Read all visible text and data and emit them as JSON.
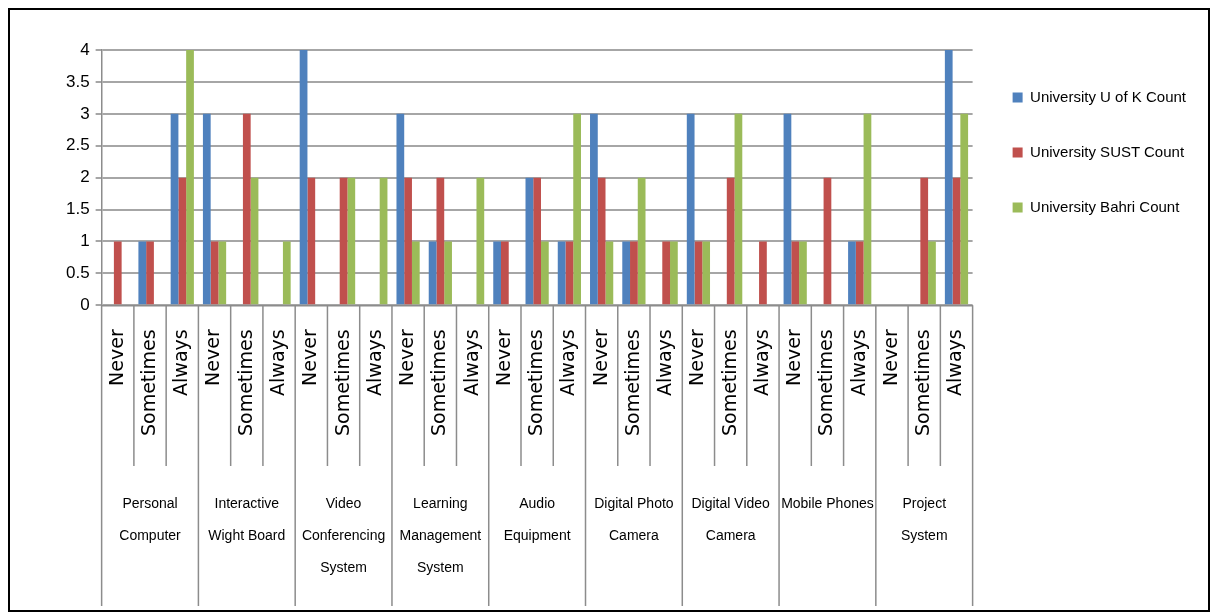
{
  "chart_data": {
    "type": "bar",
    "categories": [
      "Never",
      "Sometimes",
      "Always",
      "Never",
      "Sometimes",
      "Always",
      "Never",
      "Sometimes",
      "Always",
      "Never",
      "Sometimes",
      "Always",
      "Never",
      "Sometimes",
      "Always",
      "Never",
      "Sometimes",
      "Always",
      "Never",
      "Sometimes",
      "Always",
      "Never",
      "Sometimes",
      "Always",
      "Never",
      "Sometimes",
      "Always"
    ],
    "series": [
      {
        "name": "University U of K Count",
        "color": "#4f81bd",
        "values": [
          0,
          1,
          3,
          3,
          0,
          0,
          4,
          0,
          0,
          3,
          1,
          0,
          1,
          2,
          1,
          3,
          1,
          0,
          3,
          0,
          0,
          3,
          0,
          1,
          0,
          0,
          4
        ]
      },
      {
        "name": "University SUST Count",
        "color": "#c0504d",
        "values": [
          1,
          1,
          2,
          1,
          3,
          0,
          2,
          2,
          0,
          2,
          2,
          0,
          1,
          2,
          1,
          2,
          1,
          1,
          1,
          2,
          1,
          1,
          2,
          1,
          0,
          2,
          2
        ]
      },
      {
        "name": "University Bahri Count",
        "color": "#9bbb59",
        "values": [
          0,
          0,
          4,
          1,
          2,
          1,
          0,
          2,
          2,
          1,
          1,
          2,
          0,
          1,
          3,
          1,
          2,
          1,
          1,
          3,
          0,
          1,
          0,
          3,
          0,
          1,
          3
        ]
      }
    ],
    "ylim": [
      0,
      4
    ],
    "yticks": [
      0,
      0.5,
      1,
      1.5,
      2,
      2.5,
      3,
      3.5,
      4
    ],
    "grid": "y",
    "legend": "top right",
    "annotations": [
      "Personal Computer",
      "Interactive Wight Board",
      "Video Conferencing System",
      "Learning Management System",
      "Audio Equipment",
      "Digital Photo Camera",
      "Digital Video Camera",
      "Mobile Phones",
      "Project System"
    ]
  }
}
